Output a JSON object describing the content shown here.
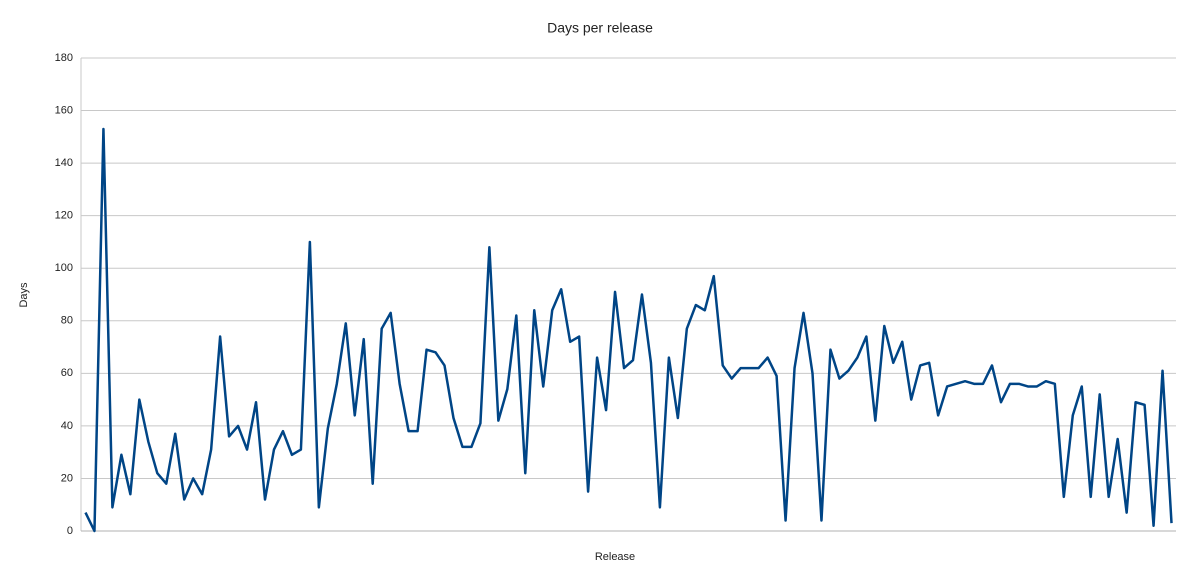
{
  "chart_data": {
    "type": "line",
    "title": "Days per release",
    "x_label": "Release",
    "y_label": "Days",
    "ylim": [
      0,
      180
    ],
    "yticks": [
      0,
      20,
      40,
      60,
      80,
      100,
      120,
      140,
      160,
      180
    ],
    "grid": true,
    "series": [
      {
        "name": "Days",
        "color": "#004586",
        "values": [
          7,
          0,
          153,
          9,
          29,
          14,
          50,
          34,
          22,
          18,
          37,
          12,
          20,
          14,
          31,
          74,
          36,
          40,
          31,
          49,
          12,
          31,
          38,
          29,
          31,
          110,
          9,
          39,
          56,
          79,
          44,
          73,
          18,
          77,
          83,
          56,
          38,
          38,
          69,
          68,
          63,
          43,
          32,
          32,
          41,
          108,
          42,
          54,
          82,
          22,
          84,
          55,
          84,
          92,
          72,
          74,
          15,
          66,
          46,
          91,
          62,
          65,
          90,
          64,
          9,
          66,
          43,
          77,
          86,
          84,
          97,
          63,
          58,
          62,
          62,
          62,
          66,
          59,
          4,
          62,
          83,
          60,
          4,
          69,
          58,
          61,
          66,
          74,
          42,
          78,
          64,
          72,
          50,
          63,
          64,
          44,
          55,
          56,
          57,
          56,
          56,
          63,
          49,
          56,
          56,
          55,
          55,
          57,
          56,
          13,
          44,
          55,
          13,
          52,
          13,
          35,
          7,
          49,
          48,
          2,
          61,
          3
        ]
      }
    ]
  }
}
